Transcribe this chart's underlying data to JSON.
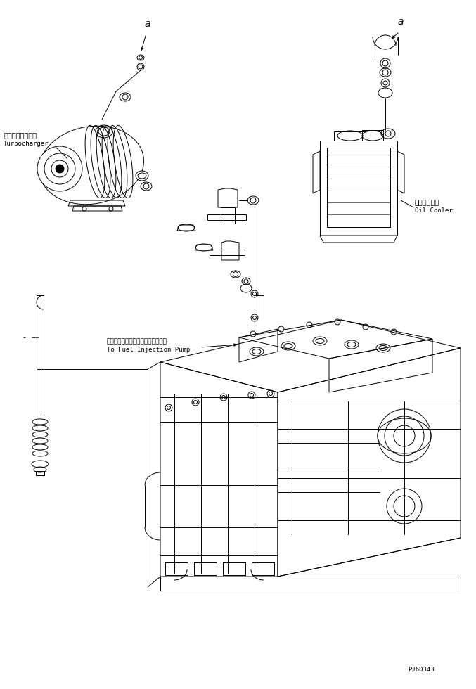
{
  "bg_color": "#ffffff",
  "line_color": "#000000",
  "lw": 0.7,
  "fig_width": 6.77,
  "fig_height": 9.8,
  "dpi": 100,
  "part_id": "PJ6D343",
  "label_turbo_jp": "ターボチャージャ",
  "label_turbo_en": "Turbocharger",
  "label_oilcooler_jp": "オイルクーラ",
  "label_oilcooler_en": "Oil Cooler",
  "label_fuel_jp": "フェエルインジェクションポンプヘ",
  "label_fuel_en": "To Fuel Injection Pump",
  "label_a": "a"
}
